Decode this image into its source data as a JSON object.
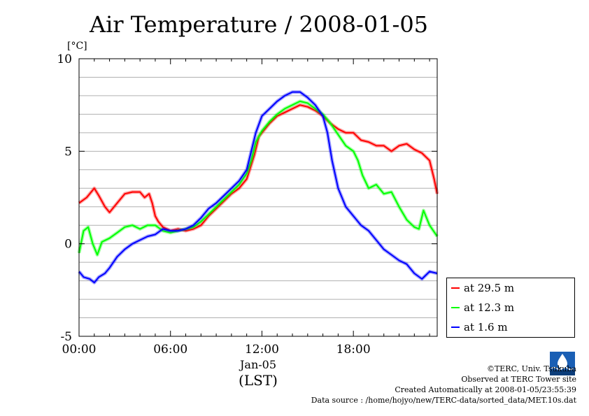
{
  "chart_data": {
    "type": "line",
    "title": "Air Temperature / 2008-01-05",
    "ylabel": "[°C]",
    "xlabel": "(LST)",
    "date_label": "Jan-05",
    "xlim": [
      0,
      23.5
    ],
    "ylim": [
      -5,
      10
    ],
    "xticks": [
      {
        "value": 0,
        "label": "00:00"
      },
      {
        "value": 6,
        "label": "06:00"
      },
      {
        "value": 12,
        "label": "12:00"
      },
      {
        "value": 18,
        "label": "18:00"
      }
    ],
    "yticks": [
      {
        "value": 10,
        "label": "10"
      },
      {
        "value": 5,
        "label": "5"
      },
      {
        "value": 0,
        "label": "0"
      },
      {
        "value": -5,
        "label": "-5"
      }
    ],
    "grid": true,
    "legend_position": "bottom-right outside",
    "series": [
      {
        "name": "at 29.5 m",
        "color": "#ff0000",
        "x": [
          0,
          0.5,
          1,
          1.3,
          1.7,
          2,
          2.5,
          3,
          3.5,
          4,
          4.3,
          4.6,
          4.8,
          5,
          5.2,
          5.5,
          6,
          6.5,
          7,
          7.5,
          8,
          8.5,
          9,
          9.5,
          10,
          10.5,
          11,
          11.2,
          11.5,
          11.8,
          12,
          12.5,
          13,
          13.5,
          14,
          14.5,
          15,
          15.5,
          16,
          16.5,
          17,
          17.5,
          18,
          18.5,
          19,
          19.5,
          20,
          20.5,
          21,
          21.5,
          22,
          22.5,
          23,
          23.3,
          23.5
        ],
        "y": [
          2.2,
          2.5,
          3.0,
          2.6,
          2.0,
          1.7,
          2.2,
          2.7,
          2.8,
          2.8,
          2.5,
          2.7,
          2.2,
          1.5,
          1.2,
          0.9,
          0.7,
          0.8,
          0.7,
          0.8,
          1.0,
          1.5,
          1.9,
          2.3,
          2.7,
          3.0,
          3.5,
          4.0,
          4.8,
          5.8,
          6.0,
          6.5,
          6.9,
          7.1,
          7.3,
          7.5,
          7.4,
          7.2,
          6.9,
          6.5,
          6.2,
          6.0,
          6.0,
          5.6,
          5.5,
          5.3,
          5.3,
          5.0,
          5.3,
          5.4,
          5.1,
          4.9,
          4.5,
          3.5,
          2.7
        ]
      },
      {
        "name": "at 12.3 m",
        "color": "#00ff00",
        "x": [
          0,
          0.3,
          0.6,
          0.9,
          1.2,
          1.5,
          2,
          2.5,
          3,
          3.5,
          4,
          4.5,
          5,
          5.5,
          6,
          6.5,
          7,
          7.5,
          8,
          8.5,
          9,
          9.5,
          10,
          10.5,
          11,
          11.3,
          11.6,
          12,
          12.5,
          13,
          13.5,
          14,
          14.5,
          15,
          15.5,
          16,
          16.5,
          17,
          17.5,
          18,
          18.3,
          18.6,
          19,
          19.5,
          20,
          20.5,
          21,
          21.5,
          22,
          22.3,
          22.6,
          23,
          23.5
        ],
        "y": [
          -0.5,
          0.7,
          0.9,
          0.0,
          -0.6,
          0.1,
          0.3,
          0.6,
          0.9,
          1.0,
          0.8,
          1.0,
          1.0,
          0.7,
          0.6,
          0.7,
          0.8,
          0.9,
          1.2,
          1.6,
          2.0,
          2.4,
          2.8,
          3.2,
          3.8,
          4.5,
          5.5,
          6.1,
          6.6,
          7.0,
          7.3,
          7.5,
          7.7,
          7.6,
          7.3,
          7.0,
          6.5,
          5.9,
          5.3,
          5.0,
          4.5,
          3.7,
          3.0,
          3.2,
          2.7,
          2.8,
          2.0,
          1.3,
          0.9,
          0.8,
          1.8,
          1.0,
          0.4
        ]
      },
      {
        "name": "at 1.6 m",
        "color": "#0000ff",
        "x": [
          0,
          0.3,
          0.7,
          1,
          1.3,
          1.7,
          2,
          2.5,
          3,
          3.5,
          4,
          4.5,
          5,
          5.5,
          6,
          6.5,
          7,
          7.5,
          8,
          8.5,
          9,
          9.5,
          10,
          10.5,
          11,
          11.3,
          11.6,
          12,
          12.5,
          13,
          13.5,
          14,
          14.5,
          15,
          15.5,
          16,
          16.3,
          16.6,
          17,
          17.5,
          18,
          18.5,
          19,
          19.5,
          20,
          20.5,
          21,
          21.5,
          22,
          22.5,
          23,
          23.5
        ],
        "y": [
          -1.5,
          -1.8,
          -1.9,
          -2.1,
          -1.8,
          -1.6,
          -1.3,
          -0.7,
          -0.3,
          0.0,
          0.2,
          0.4,
          0.5,
          0.8,
          0.7,
          0.7,
          0.8,
          1.0,
          1.4,
          1.9,
          2.2,
          2.6,
          3.0,
          3.4,
          4.0,
          5.0,
          6.0,
          6.9,
          7.3,
          7.7,
          8.0,
          8.2,
          8.2,
          7.9,
          7.5,
          6.9,
          6.0,
          4.5,
          3.0,
          2.0,
          1.5,
          1.0,
          0.7,
          0.2,
          -0.3,
          -0.6,
          -0.9,
          -1.1,
          -1.6,
          -1.9,
          -1.5,
          -1.6
        ]
      }
    ]
  },
  "credits": {
    "copyright": "©TERC, Univ. Tsukuba",
    "observed": "Observed at TERC Tower site",
    "created": "Created Automatically at 2008-01-05/23:55:39",
    "source": "Data source : /home/hojyo/new/TERC-data/sorted_data/MET.10s.dat"
  },
  "logo": {
    "text": "TERC"
  }
}
